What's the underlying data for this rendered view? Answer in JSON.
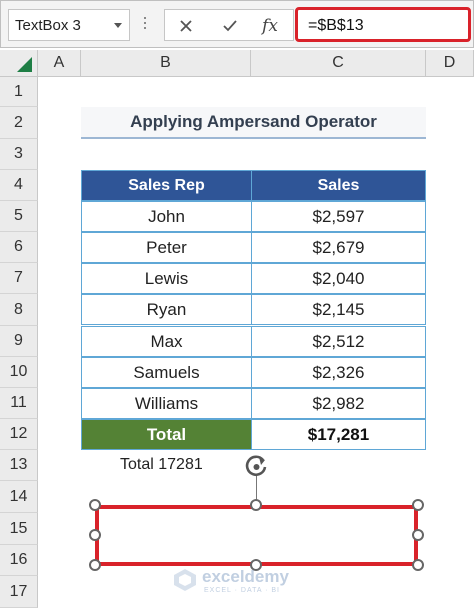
{
  "formula_bar": {
    "name_box": "TextBox 3",
    "cancel_icon": "x-icon",
    "enter_icon": "checkmark-icon",
    "function_label": "fx",
    "formula": "=$B$13"
  },
  "columns": [
    "A",
    "B",
    "C",
    "D"
  ],
  "rows": [
    "1",
    "2",
    "3",
    "4",
    "5",
    "6",
    "7",
    "8",
    "9",
    "10",
    "11",
    "12",
    "13",
    "14",
    "15",
    "16",
    "17"
  ],
  "sheet": {
    "title": "Applying Ampersand Operator",
    "table": {
      "headers": [
        "Sales Rep",
        "Sales"
      ],
      "rows": [
        [
          "John",
          "$2,597"
        ],
        [
          "Peter",
          "$2,679"
        ],
        [
          "Lewis",
          "$2,040"
        ],
        [
          "Ryan",
          "$2,145"
        ],
        [
          "Max",
          "$2,512"
        ],
        [
          "Samuels",
          "$2,326"
        ],
        [
          "Williams",
          "$2,982"
        ]
      ],
      "total": [
        "Total",
        "$17,281"
      ]
    },
    "b13": "Total 17281"
  },
  "colors": {
    "header_fill": "#2f5597",
    "total_fill": "#548235",
    "highlight": "#d9222a",
    "excel_green": "#1e7e45"
  },
  "watermark": {
    "name": "exceldemy",
    "tagline": "EXCEL · DATA · BI"
  }
}
